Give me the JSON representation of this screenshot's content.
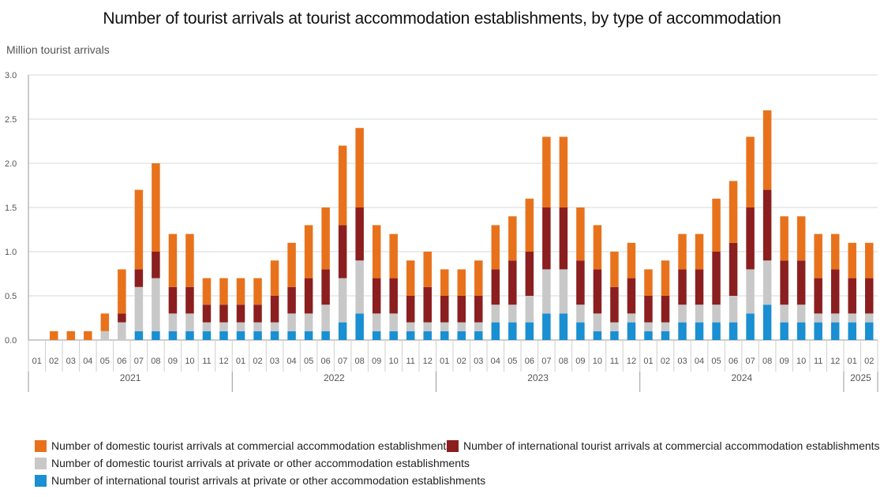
{
  "chart_data": {
    "type": "bar",
    "stacked": true,
    "title": "Number of tourist arrivals at tourist accommodation establishments, by type of accommodation",
    "ylabel": "Million tourist arrivals",
    "ylim": [
      0,
      3.0
    ],
    "yticks": [
      "0.0",
      "0.5",
      "1.0",
      "1.5",
      "2.0",
      "2.5",
      "3.0"
    ],
    "months": [
      "01",
      "02",
      "03",
      "04",
      "05",
      "06",
      "07",
      "08",
      "09",
      "10",
      "11",
      "12",
      "01",
      "02",
      "03",
      "04",
      "05",
      "06",
      "07",
      "08",
      "09",
      "10",
      "11",
      "12",
      "01",
      "02",
      "03",
      "04",
      "05",
      "06",
      "07",
      "08",
      "09",
      "10",
      "11",
      "12",
      "01",
      "02",
      "03",
      "04",
      "05",
      "06",
      "07",
      "08",
      "09",
      "10",
      "11",
      "12",
      "01",
      "02"
    ],
    "years": [
      {
        "label": "2021",
        "count": 12
      },
      {
        "label": "2022",
        "count": 12
      },
      {
        "label": "2023",
        "count": 12
      },
      {
        "label": "2024",
        "count": 12
      },
      {
        "label": "2025",
        "count": 2
      }
    ],
    "series": [
      {
        "name": "Number of international tourist arrivals at private or other accommodation establishments",
        "color": "#1a8fd1",
        "values": [
          0,
          0,
          0,
          0,
          0,
          0,
          0.1,
          0.1,
          0.1,
          0.1,
          0.1,
          0.1,
          0.1,
          0.1,
          0.1,
          0.1,
          0.1,
          0.1,
          0.2,
          0.3,
          0.1,
          0.1,
          0.1,
          0.1,
          0.1,
          0.1,
          0.1,
          0.2,
          0.2,
          0.2,
          0.3,
          0.3,
          0.2,
          0.1,
          0.1,
          0.2,
          0.1,
          0.1,
          0.2,
          0.2,
          0.2,
          0.2,
          0.3,
          0.4,
          0.2,
          0.2,
          0.2,
          0.2,
          0.2,
          0.2
        ]
      },
      {
        "name": "Number of domestic tourist arrivals at private or other accommodation establishments",
        "color": "#c8c8c8",
        "values": [
          0,
          0,
          0,
          0,
          0.1,
          0.2,
          0.5,
          0.6,
          0.2,
          0.2,
          0.1,
          0.1,
          0.1,
          0.1,
          0.1,
          0.2,
          0.2,
          0.3,
          0.5,
          0.6,
          0.2,
          0.2,
          0.1,
          0.1,
          0.1,
          0.1,
          0.1,
          0.2,
          0.2,
          0.3,
          0.5,
          0.5,
          0.2,
          0.2,
          0.1,
          0.1,
          0.1,
          0.1,
          0.2,
          0.2,
          0.2,
          0.3,
          0.5,
          0.5,
          0.2,
          0.2,
          0.1,
          0.1,
          0.1,
          0.1
        ]
      },
      {
        "name": "Number of international tourist arrivals at commercial accommodation establishments",
        "color": "#8b1f1f",
        "values": [
          0,
          0,
          0,
          0,
          0,
          0.1,
          0.2,
          0.3,
          0.3,
          0.3,
          0.2,
          0.2,
          0.2,
          0.2,
          0.3,
          0.3,
          0.4,
          0.4,
          0.6,
          0.6,
          0.4,
          0.4,
          0.3,
          0.4,
          0.3,
          0.3,
          0.3,
          0.4,
          0.5,
          0.5,
          0.7,
          0.7,
          0.5,
          0.5,
          0.4,
          0.4,
          0.3,
          0.3,
          0.4,
          0.4,
          0.6,
          0.6,
          0.7,
          0.8,
          0.5,
          0.5,
          0.4,
          0.5,
          0.4,
          0.4
        ]
      },
      {
        "name": "Number of domestic tourist arrivals at commercial accommodation establishments",
        "color": "#e8721c",
        "values": [
          0,
          0.1,
          0.1,
          0.1,
          0.2,
          0.5,
          0.9,
          1.0,
          0.6,
          0.6,
          0.3,
          0.3,
          0.3,
          0.3,
          0.4,
          0.5,
          0.6,
          0.7,
          0.9,
          0.9,
          0.6,
          0.5,
          0.4,
          0.4,
          0.3,
          0.3,
          0.4,
          0.5,
          0.5,
          0.6,
          0.8,
          0.8,
          0.6,
          0.5,
          0.4,
          0.4,
          0.3,
          0.4,
          0.4,
          0.4,
          0.6,
          0.7,
          0.8,
          0.9,
          0.5,
          0.5,
          0.5,
          0.4,
          0.4,
          0.4
        ]
      }
    ],
    "legend_order": [
      3,
      2,
      1,
      0
    ]
  }
}
